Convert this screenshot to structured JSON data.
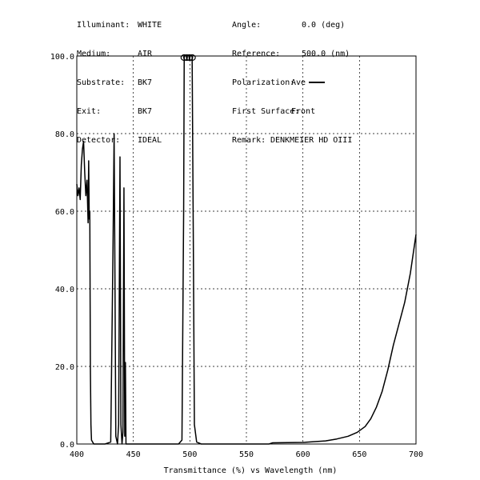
{
  "header": {
    "left": [
      {
        "label": "Illuminant:",
        "value": "WHITE"
      },
      {
        "label": "Medium:",
        "value": "AIR"
      },
      {
        "label": "Substrate:",
        "value": "BK7"
      },
      {
        "label": "Exit:",
        "value": "BK7"
      },
      {
        "label": "Detector:",
        "value": "IDEAL"
      }
    ],
    "right": [
      {
        "label": "Angle:",
        "value": "0.0 (deg)"
      },
      {
        "label": "Reference:",
        "value": "500.0 (nm)"
      },
      {
        "label": "Polarization:",
        "value": "Ave"
      },
      {
        "label": "First Surface:",
        "value": "Front"
      },
      {
        "label": "Remark:",
        "value": "DENKMEIER HD OIII"
      }
    ]
  },
  "chart_data": {
    "type": "line",
    "xlabel": "Transmittance (%)  vs  Wavelength (nm)",
    "xlim": [
      400,
      700
    ],
    "ylim": [
      0,
      100
    ],
    "x_ticks": [
      400,
      450,
      500,
      550,
      600,
      650,
      700
    ],
    "y_ticks": [
      "0.0",
      "20.0",
      "40.0",
      "60.0",
      "80.0",
      "100.0"
    ],
    "grid": true,
    "series": [
      {
        "color": "#000000",
        "points": [
          [
            400,
            67
          ],
          [
            401,
            64
          ],
          [
            402,
            66
          ],
          [
            403,
            63
          ],
          [
            404,
            72
          ],
          [
            405,
            76
          ],
          [
            406,
            78
          ],
          [
            407,
            70
          ],
          [
            408,
            64
          ],
          [
            409,
            68
          ],
          [
            410,
            57
          ],
          [
            410.5,
            73
          ],
          [
            411,
            58
          ],
          [
            411.5,
            60
          ],
          [
            412,
            20
          ],
          [
            412.5,
            5
          ],
          [
            413,
            1
          ],
          [
            415,
            0
          ],
          [
            425,
            0
          ],
          [
            430,
            0.5
          ],
          [
            432,
            50
          ],
          [
            433,
            80
          ],
          [
            433.8,
            40
          ],
          [
            434.5,
            2
          ],
          [
            436,
            0
          ],
          [
            437,
            5
          ],
          [
            438.2,
            74
          ],
          [
            439,
            5
          ],
          [
            440,
            0
          ],
          [
            440.8,
            3
          ],
          [
            441.7,
            66
          ],
          [
            442.4,
            2
          ],
          [
            443,
            21
          ],
          [
            443.5,
            0
          ],
          [
            445,
            0
          ],
          [
            490,
            0
          ],
          [
            493,
            1
          ],
          [
            494.5,
            60
          ],
          [
            495,
            100
          ],
          [
            502,
            100
          ],
          [
            503,
            55
          ],
          [
            504,
            5
          ],
          [
            506,
            0.5
          ],
          [
            510,
            0
          ],
          [
            570,
            0
          ],
          [
            573,
            0.3
          ],
          [
            600,
            0.4
          ],
          [
            620,
            0.8
          ],
          [
            630,
            1.3
          ],
          [
            640,
            2
          ],
          [
            648,
            3
          ],
          [
            655,
            4.5
          ],
          [
            660,
            6.5
          ],
          [
            665,
            9.5
          ],
          [
            670,
            13.5
          ],
          [
            675,
            19
          ],
          [
            680,
            25.5
          ],
          [
            685,
            31
          ],
          [
            690,
            36.5
          ],
          [
            695,
            44
          ],
          [
            700,
            54
          ]
        ]
      }
    ]
  }
}
